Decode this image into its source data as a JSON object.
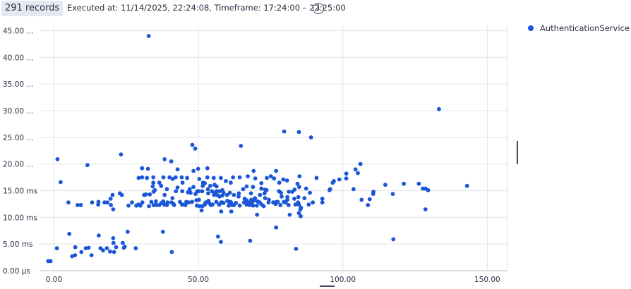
{
  "header": {
    "records_label": "291 records",
    "execution_info": "Executed at: 11/14/2025, 22:24:08, Timeframe: 17:24:00 – 22:25:00",
    "info_icon": "info-icon"
  },
  "colors": {
    "series": "#1a56d6",
    "grid": "#e1e3ea",
    "axis": "#b7bbc8",
    "text": "#2b2d42"
  },
  "chart_data": {
    "type": "scatter",
    "xlim": [
      -5,
      157
    ],
    "ylim": [
      0,
      46
    ],
    "x_ticks": [
      0,
      50,
      100,
      150
    ],
    "x_tick_labels": [
      "0.00",
      "50.00",
      "100.00",
      "150.00"
    ],
    "y_ticks": [
      0,
      5,
      10,
      15,
      20,
      25,
      30,
      35,
      40,
      45
    ],
    "y_tick_labels": [
      "0.00 μs",
      "5.00 ms",
      "10.00 ms",
      "15.00 ms",
      "20.00 ...",
      "25.00 ...",
      "30.00 ...",
      "35.00 ...",
      "40.00 ...",
      "45.00 ..."
    ],
    "grid": true,
    "legend_position": "top-right",
    "series": [
      {
        "name": "AuthenticationService",
        "points": [
          [
            -2,
            1.8
          ],
          [
            -1.2,
            1.8
          ],
          [
            1,
            4.2
          ],
          [
            1.2,
            20.9
          ],
          [
            2.3,
            16.6
          ],
          [
            5,
            12.8
          ],
          [
            5.3,
            6.9
          ],
          [
            6.3,
            2.7
          ],
          [
            7.3,
            2.9
          ],
          [
            7.4,
            4.4
          ],
          [
            8.2,
            12.3
          ],
          [
            9.3,
            12.3
          ],
          [
            9.5,
            3.5
          ],
          [
            11,
            4.2
          ],
          [
            11.6,
            19.8
          ],
          [
            12,
            4.3
          ],
          [
            13,
            2.9
          ],
          [
            13.2,
            12.8
          ],
          [
            15.3,
            12.4
          ],
          [
            15.4,
            12.9
          ],
          [
            15.5,
            6.6
          ],
          [
            16.1,
            4.2
          ],
          [
            17,
            3.8
          ],
          [
            17.5,
            12.8
          ],
          [
            18.3,
            4.2
          ],
          [
            18.5,
            12.8
          ],
          [
            19.4,
            3.6
          ],
          [
            19.6,
            13.5
          ],
          [
            19.7,
            12.3
          ],
          [
            20.3,
            14.2
          ],
          [
            20.5,
            11.5
          ],
          [
            20.5,
            6.1
          ],
          [
            20.6,
            5.2
          ],
          [
            20.8,
            3.5
          ],
          [
            21.5,
            4.4
          ],
          [
            22.8,
            14.5
          ],
          [
            23.2,
            21.8
          ],
          [
            23.5,
            14.2
          ],
          [
            23.8,
            5.2
          ],
          [
            24.2,
            4.3
          ],
          [
            24.5,
            4.5
          ],
          [
            25.5,
            7.3
          ],
          [
            25.8,
            12.2
          ],
          [
            27,
            12.8
          ],
          [
            28.3,
            4.2
          ],
          [
            28.5,
            12.2
          ],
          [
            29.2,
            12.4
          ],
          [
            29.3,
            17.4
          ],
          [
            29.9,
            12.2
          ],
          [
            30.5,
            19.2
          ],
          [
            30.5,
            17.5
          ],
          [
            30.6,
            12.8
          ],
          [
            31.2,
            14.2
          ],
          [
            31.8,
            14.3
          ],
          [
            32.2,
            17.4
          ],
          [
            32.5,
            19.1
          ],
          [
            32.8,
            44
          ],
          [
            32.9,
            12.1
          ],
          [
            33.2,
            14.3
          ],
          [
            33.7,
            12.9
          ],
          [
            34.2,
            15.8
          ],
          [
            34.4,
            17.5
          ],
          [
            34.4,
            16.5
          ],
          [
            34.5,
            14.8
          ],
          [
            34.5,
            12.3
          ],
          [
            34.9,
            15.1
          ],
          [
            35.3,
            13
          ],
          [
            35.5,
            12.3
          ],
          [
            36.5,
            16.5
          ],
          [
            36.5,
            12.3
          ],
          [
            37.1,
            15.9
          ],
          [
            37.2,
            12.7
          ],
          [
            37.7,
            7.3
          ],
          [
            37.8,
            13
          ],
          [
            37.9,
            17.5
          ],
          [
            38.2,
            12.4
          ],
          [
            38.3,
            14.2
          ],
          [
            38.3,
            20.9
          ],
          [
            39.1,
            12.3
          ],
          [
            39.1,
            15.3
          ],
          [
            39.3,
            12.8
          ],
          [
            40,
            17.5
          ],
          [
            40.6,
            20.5
          ],
          [
            40.7,
            12.8
          ],
          [
            40.8,
            3.5
          ],
          [
            41,
            13.6
          ],
          [
            41.1,
            17.2
          ],
          [
            41.4,
            12.5
          ],
          [
            41.6,
            12.3
          ],
          [
            42.1,
            17.5
          ],
          [
            42.2,
            14.9
          ],
          [
            42.8,
            15.6
          ],
          [
            42.8,
            19
          ],
          [
            43.6,
            12.9
          ],
          [
            44.2,
            17.5
          ],
          [
            44.3,
            12.4
          ],
          [
            44.4,
            14.9
          ],
          [
            44.5,
            16.5
          ],
          [
            44.6,
            12.4
          ],
          [
            45.5,
            12.3
          ],
          [
            45.8,
            12.9
          ],
          [
            46.1,
            17.4
          ],
          [
            46.4,
            14.7
          ],
          [
            46.6,
            12.8
          ],
          [
            47,
            15.3
          ],
          [
            47.3,
            14.6
          ],
          [
            47.8,
            12.9
          ],
          [
            47.9,
            23.6
          ],
          [
            48.3,
            18.7
          ],
          [
            48.3,
            15.7
          ],
          [
            48.9,
            22.9
          ],
          [
            49,
            14.4
          ],
          [
            49.3,
            13.2
          ],
          [
            49.5,
            12.2
          ],
          [
            49.6,
            14.9
          ],
          [
            49.9,
            19.1
          ],
          [
            50.1,
            14.9
          ],
          [
            50.2,
            13.3
          ],
          [
            50.3,
            17.2
          ],
          [
            50.4,
            12.1
          ],
          [
            51.1,
            11.3
          ],
          [
            51.3,
            14.9
          ],
          [
            51.4,
            12.1
          ],
          [
            51.5,
            15.9
          ],
          [
            51.6,
            16.5
          ],
          [
            52.2,
            12.4
          ],
          [
            52.2,
            16.4
          ],
          [
            52.5,
            12.8
          ],
          [
            53.1,
            17.5
          ],
          [
            53.1,
            19.2
          ],
          [
            53.2,
            12.9
          ],
          [
            53.3,
            15.3
          ],
          [
            53.4,
            14.5
          ],
          [
            53.5,
            13.1
          ],
          [
            53.7,
            12.7
          ],
          [
            54.1,
            15.9
          ],
          [
            54.3,
            12.3
          ],
          [
            54.7,
            14.9
          ],
          [
            54.9,
            12.4
          ],
          [
            55.3,
            17.4
          ],
          [
            55.4,
            14.2
          ],
          [
            55.6,
            16.1
          ],
          [
            55.7,
            14.5
          ],
          [
            56.2,
            12.9
          ],
          [
            56.2,
            14.9
          ],
          [
            56.3,
            15.8
          ],
          [
            56.5,
            14.2
          ],
          [
            56.8,
            6.4
          ],
          [
            57.2,
            12.4
          ],
          [
            57.3,
            14.9
          ],
          [
            57.3,
            13.9
          ],
          [
            57.8,
            17.4
          ],
          [
            57.8,
            5.4
          ],
          [
            57.9,
            11.1
          ],
          [
            57.9,
            12.8
          ],
          [
            58.2,
            12.8
          ],
          [
            58.3,
            14.1
          ],
          [
            58.3,
            15.1
          ],
          [
            58.7,
            14.6
          ],
          [
            58.7,
            12.7
          ],
          [
            59.5,
            16.8
          ],
          [
            59.9,
            14.2
          ],
          [
            60,
            13.1
          ],
          [
            60.5,
            12.2
          ],
          [
            60.8,
            12.7
          ],
          [
            60.9,
            14.6
          ],
          [
            61.1,
            12.9
          ],
          [
            61.2,
            16.5
          ],
          [
            61.3,
            12.8
          ],
          [
            61.4,
            11.1
          ],
          [
            61.7,
            12.3
          ],
          [
            62,
            17.5
          ],
          [
            62.3,
            12.3
          ],
          [
            62.3,
            14.2
          ],
          [
            63,
            12.7
          ],
          [
            63.9,
            13.9
          ],
          [
            64,
            14.5
          ],
          [
            64.3,
            12.2
          ],
          [
            64.3,
            17.5
          ],
          [
            64.7,
            23.4
          ],
          [
            65.5,
            15.3
          ],
          [
            65.8,
            12.8
          ],
          [
            66,
            13.5
          ],
          [
            66.7,
            13.2
          ],
          [
            66.7,
            12.4
          ],
          [
            66.7,
            15.8
          ],
          [
            67.1,
            17.7
          ],
          [
            67.3,
            12.8
          ],
          [
            67.7,
            12.3
          ],
          [
            67.9,
            5.6
          ],
          [
            68.2,
            14.5
          ],
          [
            68.3,
            13.3
          ],
          [
            68.3,
            12.6
          ],
          [
            68.7,
            12.9
          ],
          [
            68.9,
            15.7
          ],
          [
            68.9,
            12.2
          ],
          [
            69.1,
            18.7
          ],
          [
            69.4,
            13.2
          ],
          [
            69.6,
            13.6
          ],
          [
            69.7,
            17.3
          ],
          [
            70.2,
            12.2
          ],
          [
            70.3,
            10.5
          ],
          [
            70.5,
            13
          ],
          [
            71.2,
            12.8
          ],
          [
            71.3,
            14.2
          ],
          [
            71.8,
            15.4
          ],
          [
            71.8,
            16.4
          ],
          [
            71.9,
            12.4
          ],
          [
            72.6,
            12.1
          ],
          [
            72.9,
            14.5
          ],
          [
            73.1,
            13.6
          ],
          [
            73.1,
            15.2
          ],
          [
            73.6,
            15.1
          ],
          [
            73.7,
            17.4
          ],
          [
            74.3,
            12.8
          ],
          [
            74.4,
            13.3
          ],
          [
            75.1,
            17.7
          ],
          [
            75.9,
            12.8
          ],
          [
            76.2,
            17.3
          ],
          [
            76.7,
            12.5
          ],
          [
            76.9,
            18.7
          ],
          [
            76.9,
            8.1
          ],
          [
            77,
            12.9
          ],
          [
            77.5,
            12.9
          ],
          [
            77.9,
            14.9
          ],
          [
            78,
            16.5
          ],
          [
            78.4,
            12.3
          ],
          [
            78.6,
            14.6
          ],
          [
            78.8,
            13.9
          ],
          [
            79.4,
            17.1
          ],
          [
            79.6,
            12.9
          ],
          [
            79.7,
            26.1
          ],
          [
            80.2,
            12.8
          ],
          [
            80.7,
            16.9
          ],
          [
            80.8,
            13.8
          ],
          [
            80.8,
            13.3
          ],
          [
            81.2,
            12.3
          ],
          [
            81.3,
            14.8
          ],
          [
            81.6,
            10.5
          ],
          [
            82.5,
            14.8
          ],
          [
            83.2,
            13.5
          ],
          [
            83.3,
            15.2
          ],
          [
            83.6,
            12.4
          ],
          [
            83.8,
            4.1
          ],
          [
            84.3,
            16.3
          ],
          [
            84.5,
            12.8
          ],
          [
            84.6,
            13.8
          ],
          [
            84.8,
            26
          ],
          [
            84.8,
            10.8
          ],
          [
            84.8,
            12.4
          ],
          [
            84.9,
            15.7
          ],
          [
            85,
            17.7
          ],
          [
            85.3,
            11.5
          ],
          [
            85.4,
            10.2
          ],
          [
            85.5,
            11.8
          ],
          [
            86.7,
            13.6
          ],
          [
            87.3,
            15.4
          ],
          [
            88.2,
            12.4
          ],
          [
            88.6,
            14.6
          ],
          [
            89,
            25
          ],
          [
            89.6,
            12.8
          ],
          [
            90.9,
            17.4
          ],
          [
            92.9,
            12.8
          ],
          [
            92.9,
            13.5
          ],
          [
            95.4,
            15.1
          ],
          [
            95.6,
            15.3
          ],
          [
            96.5,
            16.5
          ],
          [
            96.9,
            16.8
          ],
          [
            98.8,
            17.1
          ],
          [
            101.2,
            17.3
          ],
          [
            101.2,
            18.2
          ],
          [
            103.7,
            15.3
          ],
          [
            104.4,
            19
          ],
          [
            105.2,
            18.3
          ],
          [
            106.1,
            20
          ],
          [
            106.5,
            13.3
          ],
          [
            108.7,
            12.3
          ],
          [
            109.3,
            13.4
          ],
          [
            110.5,
            14.4
          ],
          [
            110.6,
            14.8
          ],
          [
            114.7,
            16.1
          ],
          [
            117.3,
            14.4
          ],
          [
            117.5,
            5.9
          ],
          [
            121.1,
            16.3
          ],
          [
            126.3,
            16.3
          ],
          [
            127.7,
            15.4
          ],
          [
            128.6,
            11.5
          ],
          [
            128.6,
            15.4
          ],
          [
            129.5,
            15.1
          ],
          [
            133.3,
            30.3
          ],
          [
            143,
            15.9
          ]
        ]
      }
    ]
  }
}
